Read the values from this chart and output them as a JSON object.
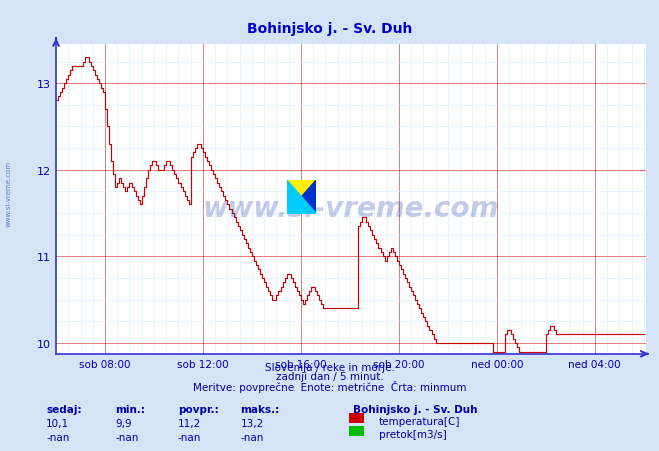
{
  "title": "Bohinjsko j. - Sv. Duh",
  "title_color": "#0000cc",
  "bg_color": "#d4e4f4",
  "plot_bg_color": "#ffffff",
  "grid_color_major": "#cc0000",
  "grid_color_minor": "#ddeeff",
  "line_color": "#cc0000",
  "axis_color": "#3333cc",
  "tick_color": "#0000aa",
  "xlim_start": 0,
  "xlim_end": 289,
  "ylim": [
    9.875,
    13.45
  ],
  "yticks": [
    10,
    11,
    12,
    13
  ],
  "xtick_labels": [
    "sob 08:00",
    "sob 12:00",
    "sob 16:00",
    "sob 20:00",
    "ned 00:00",
    "ned 04:00"
  ],
  "xtick_positions": [
    24,
    72,
    120,
    168,
    216,
    264
  ],
  "footer_line1": "Slovenija / reke in morje.",
  "footer_line2": "zadnji dan / 5 minut.",
  "footer_line3": "Meritve: povprečne  Enote: metrične  Črta: minmum",
  "footer_color": "#0000aa",
  "stats_labels": [
    "sedaj:",
    "min.:",
    "povpr.:",
    "maks.:"
  ],
  "stats_temp": [
    "10,1",
    "9,9",
    "11,2",
    "13,2"
  ],
  "stats_pretok": [
    "-nan",
    "-nan",
    "-nan",
    "-nan"
  ],
  "legend_title": "Bohinjsko j. - Sv. Duh",
  "legend_temp": "temperatura[C]",
  "legend_pretok": "pretok[m3/s]",
  "legend_temp_color": "#cc0000",
  "legend_pretok_color": "#00bb00",
  "watermark_text": "www.si-vreme.com",
  "watermark_color": "#1133aa",
  "watermark_alpha": 0.25,
  "sidebar_text": "www.si-vreme.com",
  "temp_data": [
    12.8,
    12.85,
    12.9,
    12.95,
    13.0,
    13.05,
    13.1,
    13.15,
    13.2,
    13.2,
    13.2,
    13.2,
    13.2,
    13.25,
    13.3,
    13.3,
    13.25,
    13.2,
    13.15,
    13.1,
    13.05,
    13.0,
    12.95,
    12.9,
    12.7,
    12.5,
    12.3,
    12.1,
    11.95,
    11.8,
    11.85,
    11.9,
    11.85,
    11.8,
    11.75,
    11.8,
    11.85,
    11.8,
    11.75,
    11.7,
    11.65,
    11.6,
    11.7,
    11.8,
    11.9,
    12.0,
    12.05,
    12.1,
    12.1,
    12.05,
    12.0,
    12.0,
    12.0,
    12.05,
    12.1,
    12.1,
    12.05,
    12.0,
    11.95,
    11.9,
    11.85,
    11.8,
    11.75,
    11.7,
    11.65,
    11.6,
    12.15,
    12.2,
    12.25,
    12.3,
    12.3,
    12.25,
    12.2,
    12.15,
    12.1,
    12.05,
    12.0,
    11.95,
    11.9,
    11.85,
    11.8,
    11.75,
    11.7,
    11.65,
    11.6,
    11.55,
    11.5,
    11.45,
    11.4,
    11.35,
    11.3,
    11.25,
    11.2,
    11.15,
    11.1,
    11.05,
    11.0,
    10.95,
    10.9,
    10.85,
    10.8,
    10.75,
    10.7,
    10.65,
    10.6,
    10.55,
    10.5,
    10.5,
    10.55,
    10.6,
    10.65,
    10.7,
    10.75,
    10.8,
    10.8,
    10.75,
    10.7,
    10.65,
    10.6,
    10.55,
    10.5,
    10.45,
    10.5,
    10.55,
    10.6,
    10.65,
    10.65,
    10.6,
    10.55,
    10.5,
    10.45,
    10.4,
    10.4,
    10.4,
    10.4,
    10.4,
    10.4,
    10.4,
    10.4,
    10.4,
    10.4,
    10.4,
    10.4,
    10.4,
    10.4,
    10.4,
    10.4,
    10.4,
    11.35,
    11.4,
    11.45,
    11.45,
    11.4,
    11.35,
    11.3,
    11.25,
    11.2,
    11.15,
    11.1,
    11.05,
    11.0,
    10.95,
    11.0,
    11.05,
    11.1,
    11.05,
    11.0,
    10.95,
    10.9,
    10.85,
    10.8,
    10.75,
    10.7,
    10.65,
    10.6,
    10.55,
    10.5,
    10.45,
    10.4,
    10.35,
    10.3,
    10.25,
    10.2,
    10.15,
    10.1,
    10.05,
    10.0,
    10.0,
    10.0,
    10.0,
    10.0,
    10.0,
    10.0,
    10.0,
    10.0,
    10.0,
    10.0,
    10.0,
    10.0,
    10.0,
    10.0,
    10.0,
    10.0,
    10.0,
    10.0,
    10.0,
    10.0,
    10.0,
    10.0,
    10.0,
    10.0,
    10.0,
    10.0,
    10.0,
    9.9,
    9.9,
    9.9,
    9.9,
    9.9,
    9.9,
    10.1,
    10.15,
    10.15,
    10.1,
    10.05,
    10.0,
    9.95,
    9.9,
    9.9,
    9.9,
    9.9,
    9.9,
    9.9,
    9.9,
    9.9,
    9.9,
    9.9,
    9.9,
    9.9,
    9.9,
    10.1,
    10.15,
    10.2,
    10.2,
    10.15,
    10.1,
    10.1,
    10.1,
    10.1,
    10.1,
    10.1,
    10.1,
    10.1,
    10.1,
    10.1,
    10.1,
    10.1,
    10.1,
    10.1,
    10.1,
    10.1,
    10.1,
    10.1,
    10.1,
    10.1,
    10.1,
    10.1,
    10.1,
    10.1,
    10.1,
    10.1,
    10.1,
    10.1,
    10.1,
    10.1,
    10.1,
    10.1,
    10.1,
    10.1,
    10.1,
    10.1,
    10.1,
    10.1,
    10.1,
    10.1,
    10.1,
    10.1,
    10.1,
    10.1
  ]
}
